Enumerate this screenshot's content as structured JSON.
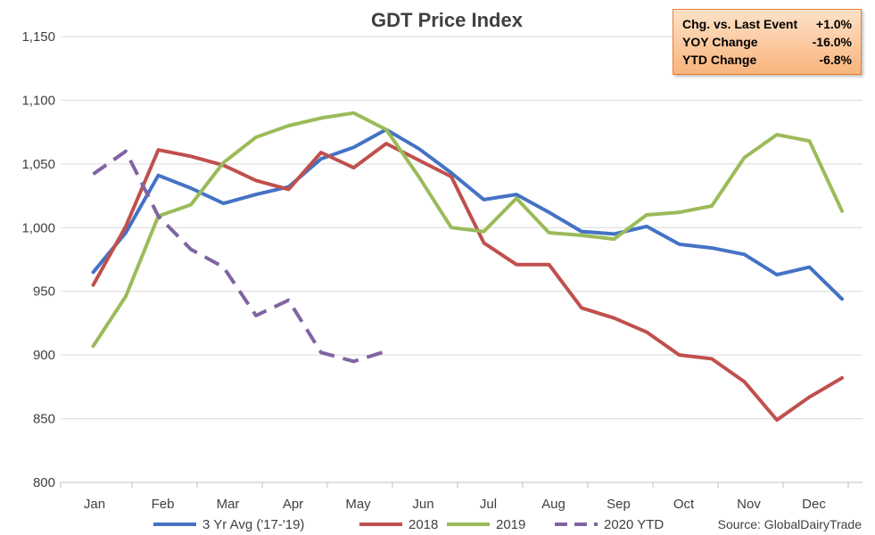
{
  "chart_data": {
    "type": "line",
    "title": "GDT Price Index",
    "source": "Source: GlobalDairyTrade",
    "ylim": [
      800,
      1150
    ],
    "yticks": [
      800,
      850,
      900,
      950,
      1000,
      1050,
      1100,
      1150
    ],
    "ytick_labels": [
      "800",
      "850",
      "900",
      "950",
      "1,000",
      "1,050",
      "1,100",
      "1,150"
    ],
    "month_labels": [
      "Jan",
      "Feb",
      "Mar",
      "Apr",
      "May",
      "Jun",
      "Jul",
      "Aug",
      "Sep",
      "Oct",
      "Nov",
      "Dec"
    ],
    "grid": "horizontal",
    "legend_position": "bottom",
    "series": [
      {
        "name": "3 Yr Avg ('17-'19)",
        "color": "#4472c4",
        "dash": "solid",
        "values": [
          965,
          996,
          1041,
          1031,
          1019,
          1026,
          1032,
          1054,
          1063,
          1077,
          1062,
          1043,
          1022,
          1026,
          1012,
          997,
          995,
          1001,
          987,
          984,
          979,
          963,
          969,
          944
        ]
      },
      {
        "name": "2018",
        "color": "#c0504d",
        "dash": "solid",
        "values": [
          955,
          1001,
          1061,
          1056,
          1049,
          1037,
          1030,
          1059,
          1047,
          1066,
          1053,
          1040,
          988,
          971,
          971,
          937,
          929,
          918,
          900,
          897,
          879,
          849,
          867,
          882
        ]
      },
      {
        "name": "2019",
        "color": "#9bbb59",
        "dash": "solid",
        "values": [
          907,
          946,
          1009,
          1018,
          1051,
          1071,
          1080,
          1086,
          1090,
          1077,
          1040,
          1000,
          997,
          1023,
          996,
          994,
          991,
          1010,
          1012,
          1017,
          1055,
          1073,
          1068,
          1013
        ]
      },
      {
        "name": "2020 YTD",
        "color": "#8064a2",
        "dash": "dashed",
        "values": [
          1042,
          1060,
          1009,
          983,
          969,
          931,
          943,
          902,
          895,
          903
        ]
      }
    ]
  },
  "stats_box": {
    "rows": [
      {
        "label": "Chg. vs. Last Event",
        "value": "+1.0%"
      },
      {
        "label": "YOY Change",
        "value": "-16.0%"
      },
      {
        "label": "YTD Change",
        "value": "-6.8%"
      }
    ],
    "colors": {
      "fill_top": "#fde2c8",
      "fill_bottom": "#f9b47c",
      "border": "#ed7d31"
    }
  }
}
